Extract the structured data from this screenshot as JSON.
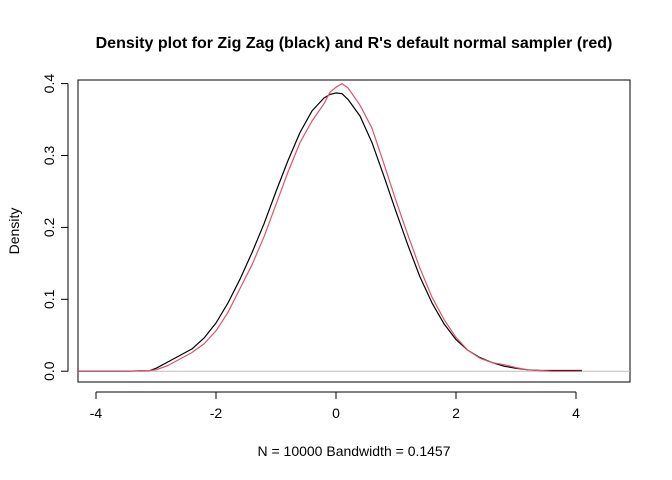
{
  "chart_data": {
    "type": "line",
    "title": "Density plot for Zig Zag (black) and R's default normal sampler (red)",
    "xlabel": "N = 10000   Bandwidth = 0.1457",
    "ylabel": "Density",
    "xlim": [
      -4.3,
      4.9
    ],
    "ylim": [
      -0.015,
      0.405
    ],
    "x_ticks": [
      -4,
      -2,
      0,
      2,
      4
    ],
    "x_tick_labels": [
      "-4",
      "-2",
      "0",
      "2",
      "4"
    ],
    "y_ticks": [
      0.0,
      0.1,
      0.2,
      0.3,
      0.4
    ],
    "y_tick_labels": [
      "0.0",
      "0.1",
      "0.2",
      "0.3",
      "0.4"
    ],
    "grid": false,
    "baseline": {
      "y": 0,
      "color": "#BEBEBE"
    },
    "series": [
      {
        "color": "#000000",
        "x": [
          -4.3,
          -3.5,
          -3.1,
          -3.0,
          -2.8,
          -2.6,
          -2.4,
          -2.2,
          -2.0,
          -1.8,
          -1.6,
          -1.4,
          -1.2,
          -1.0,
          -0.8,
          -0.6,
          -0.4,
          -0.2,
          -0.1,
          0.0,
          0.1,
          0.2,
          0.4,
          0.6,
          0.8,
          1.0,
          1.2,
          1.4,
          1.6,
          1.8,
          2.0,
          2.2,
          2.4,
          2.6,
          2.8,
          3.0,
          3.2,
          3.4,
          3.6,
          3.8,
          4.1
        ],
        "y": [
          0.0,
          0.0,
          0.001,
          0.004,
          0.013,
          0.022,
          0.031,
          0.046,
          0.067,
          0.095,
          0.128,
          0.165,
          0.205,
          0.25,
          0.293,
          0.332,
          0.362,
          0.38,
          0.385,
          0.387,
          0.386,
          0.378,
          0.355,
          0.318,
          0.271,
          0.222,
          0.175,
          0.131,
          0.095,
          0.066,
          0.044,
          0.029,
          0.019,
          0.012,
          0.007,
          0.004,
          0.002,
          0.001,
          0.001,
          0.001,
          0.001
        ]
      },
      {
        "color": "#DF536B",
        "x": [
          -4.3,
          -3.5,
          -3.1,
          -3.0,
          -2.8,
          -2.6,
          -2.4,
          -2.2,
          -2.0,
          -1.8,
          -1.6,
          -1.4,
          -1.2,
          -1.0,
          -0.8,
          -0.6,
          -0.4,
          -0.2,
          -0.1,
          0.0,
          0.1,
          0.2,
          0.4,
          0.6,
          0.8,
          1.0,
          1.2,
          1.4,
          1.6,
          1.8,
          2.0,
          2.2,
          2.4,
          2.6,
          2.8,
          3.0,
          3.2,
          3.4,
          3.6,
          3.8,
          4.1
        ],
        "y": [
          0.0,
          0.0,
          0.001,
          0.002,
          0.008,
          0.017,
          0.026,
          0.038,
          0.056,
          0.082,
          0.115,
          0.148,
          0.187,
          0.232,
          0.277,
          0.318,
          0.348,
          0.372,
          0.388,
          0.395,
          0.4,
          0.394,
          0.37,
          0.338,
          0.288,
          0.237,
          0.189,
          0.143,
          0.103,
          0.072,
          0.047,
          0.029,
          0.018,
          0.012,
          0.009,
          0.005,
          0.002,
          0.001,
          0.0,
          0.0,
          0.0
        ]
      }
    ]
  }
}
